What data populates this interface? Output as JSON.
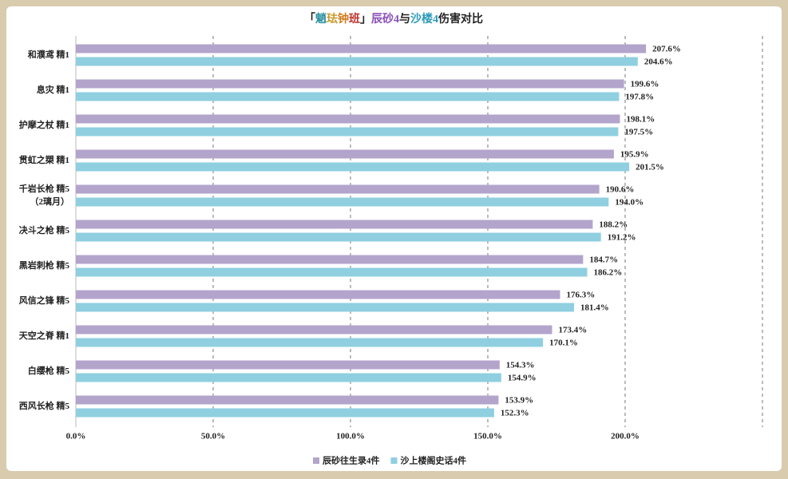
{
  "chart_data": {
    "type": "hbar",
    "title": [
      {
        "text": "「",
        "color": "#222222"
      },
      {
        "text": "魈",
        "color": "#2a8fa0"
      },
      {
        "text": "珐",
        "color": "#c89a2a"
      },
      {
        "text": "钟",
        "color": "#d07a1a"
      },
      {
        "text": "班",
        "color": "#c0302a"
      },
      {
        "text": "」",
        "color": "#222222"
      },
      {
        "text": "辰砂4",
        "color": "#8a4fb8"
      },
      {
        "text": "与",
        "color": "#222222"
      },
      {
        "text": "沙楼4",
        "color": "#2a9ab8"
      },
      {
        "text": "伤害对比",
        "color": "#222222"
      }
    ],
    "categories": [
      "和濮鸢 精1",
      "息灾 精1",
      "护摩之杖 精1",
      "贯虹之槊 精1",
      "千岩长枪 精5\n（2璃月）",
      "决斗之枪 精5",
      "黑岩刺枪 精5",
      "风信之锋 精5",
      "天空之脊 精1",
      "白缨枪 精5",
      "西风长枪 精5"
    ],
    "series": [
      {
        "name": "辰砂往生录4件",
        "color": "#b3a4cc",
        "values": [
          207.6,
          199.6,
          198.1,
          195.9,
          190.6,
          188.2,
          184.7,
          176.3,
          173.4,
          154.3,
          153.9
        ],
        "value_labels": [
          "207.6%",
          "199.6%",
          "198.1%",
          "195.9%",
          "190.6%",
          "188.2%",
          "184.7%",
          "176.3%",
          "173.4%",
          "154.3%",
          "153.9%"
        ]
      },
      {
        "name": "沙上楼阁史话4件",
        "color": "#8fcfe0",
        "values": [
          204.6,
          197.8,
          197.5,
          201.5,
          194.0,
          191.2,
          186.2,
          181.4,
          170.1,
          154.9,
          152.3
        ],
        "value_labels": [
          "204.6%",
          "197.8%",
          "197.5%",
          "201.5%",
          "194.0%",
          "191.2%",
          "186.2%",
          "181.4%",
          "170.1%",
          "154.9%",
          "152.3%"
        ]
      }
    ],
    "xlim": [
      0,
      250
    ],
    "xticks": [
      {
        "value": 0,
        "label": "0.0%"
      },
      {
        "value": 50,
        "label": "50.0%"
      },
      {
        "value": 100,
        "label": "100.0%"
      },
      {
        "value": 150,
        "label": "150.0%"
      },
      {
        "value": 200,
        "label": "200.0%"
      }
    ],
    "grid": true,
    "legend": "bottom"
  }
}
